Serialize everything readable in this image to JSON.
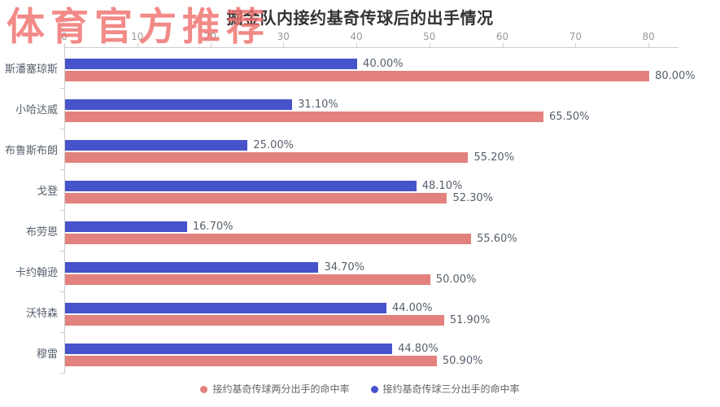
{
  "watermark": {
    "text": "体育官方推荐",
    "color": "#f0716f"
  },
  "chart_data": {
    "type": "bar",
    "orientation": "horizontal",
    "title": "掘金队内接约基奇传球后的出手情况",
    "categories": [
      "斯潘塞琼斯",
      "小哈达威",
      "布鲁斯布朗",
      "戈登",
      "布劳恩",
      "卡约翰逊",
      "沃特森",
      "穆雷"
    ],
    "series": [
      {
        "name": "接约基奇传球三分出手的命中率",
        "color": "#4653cb",
        "row_position": "top",
        "values": [
          40.0,
          31.1,
          25.0,
          48.1,
          16.7,
          34.7,
          44.0,
          44.8
        ],
        "value_labels": [
          "40.00%",
          "31.10%",
          "25.00%",
          "48.10%",
          "16.70%",
          "34.70%",
          "44.00%",
          "44.80%"
        ]
      },
      {
        "name": "接约基奇传球两分出手的命中率",
        "color": "#e2817d",
        "row_position": "bottom",
        "values": [
          80.0,
          65.5,
          55.2,
          52.3,
          55.6,
          50.0,
          51.9,
          50.9
        ],
        "value_labels": [
          "80.00%",
          "65.50%",
          "55.20%",
          "52.30%",
          "55.60%",
          "50.00%",
          "51.90%",
          "50.90%"
        ]
      }
    ],
    "x_ticks": [
      0,
      10,
      20,
      30,
      40,
      50,
      60,
      70,
      80
    ],
    "xlim": [
      0,
      84
    ],
    "axis_position": "top",
    "grid": false,
    "legend_position": "bottom",
    "legend": [
      {
        "label": "接约基奇传球两分出手的命中率",
        "color": "#e2817d"
      },
      {
        "label": "接约基奇传球三分出手的命中率",
        "color": "#4653cb"
      }
    ],
    "colors": {
      "axis_line": "#cccccc",
      "tick_label": "#999999",
      "category_label": "#57606c",
      "value_label": "#57606c",
      "title": "#333333"
    }
  }
}
